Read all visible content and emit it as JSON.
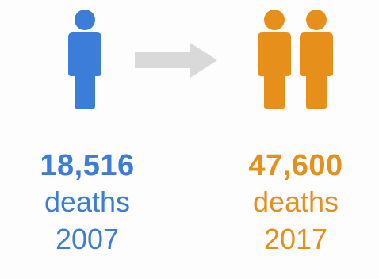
{
  "colors": {
    "before": "#3c7dd9",
    "after": "#e68f1a",
    "arrow": "#d9d9d9"
  },
  "icons": {
    "person": "person-icon",
    "arrow": "arrow-right-icon"
  },
  "before": {
    "count": "18,516",
    "label": "deaths",
    "year": "2007"
  },
  "after": {
    "count": "47,600",
    "label": "deaths",
    "year": "2017"
  }
}
